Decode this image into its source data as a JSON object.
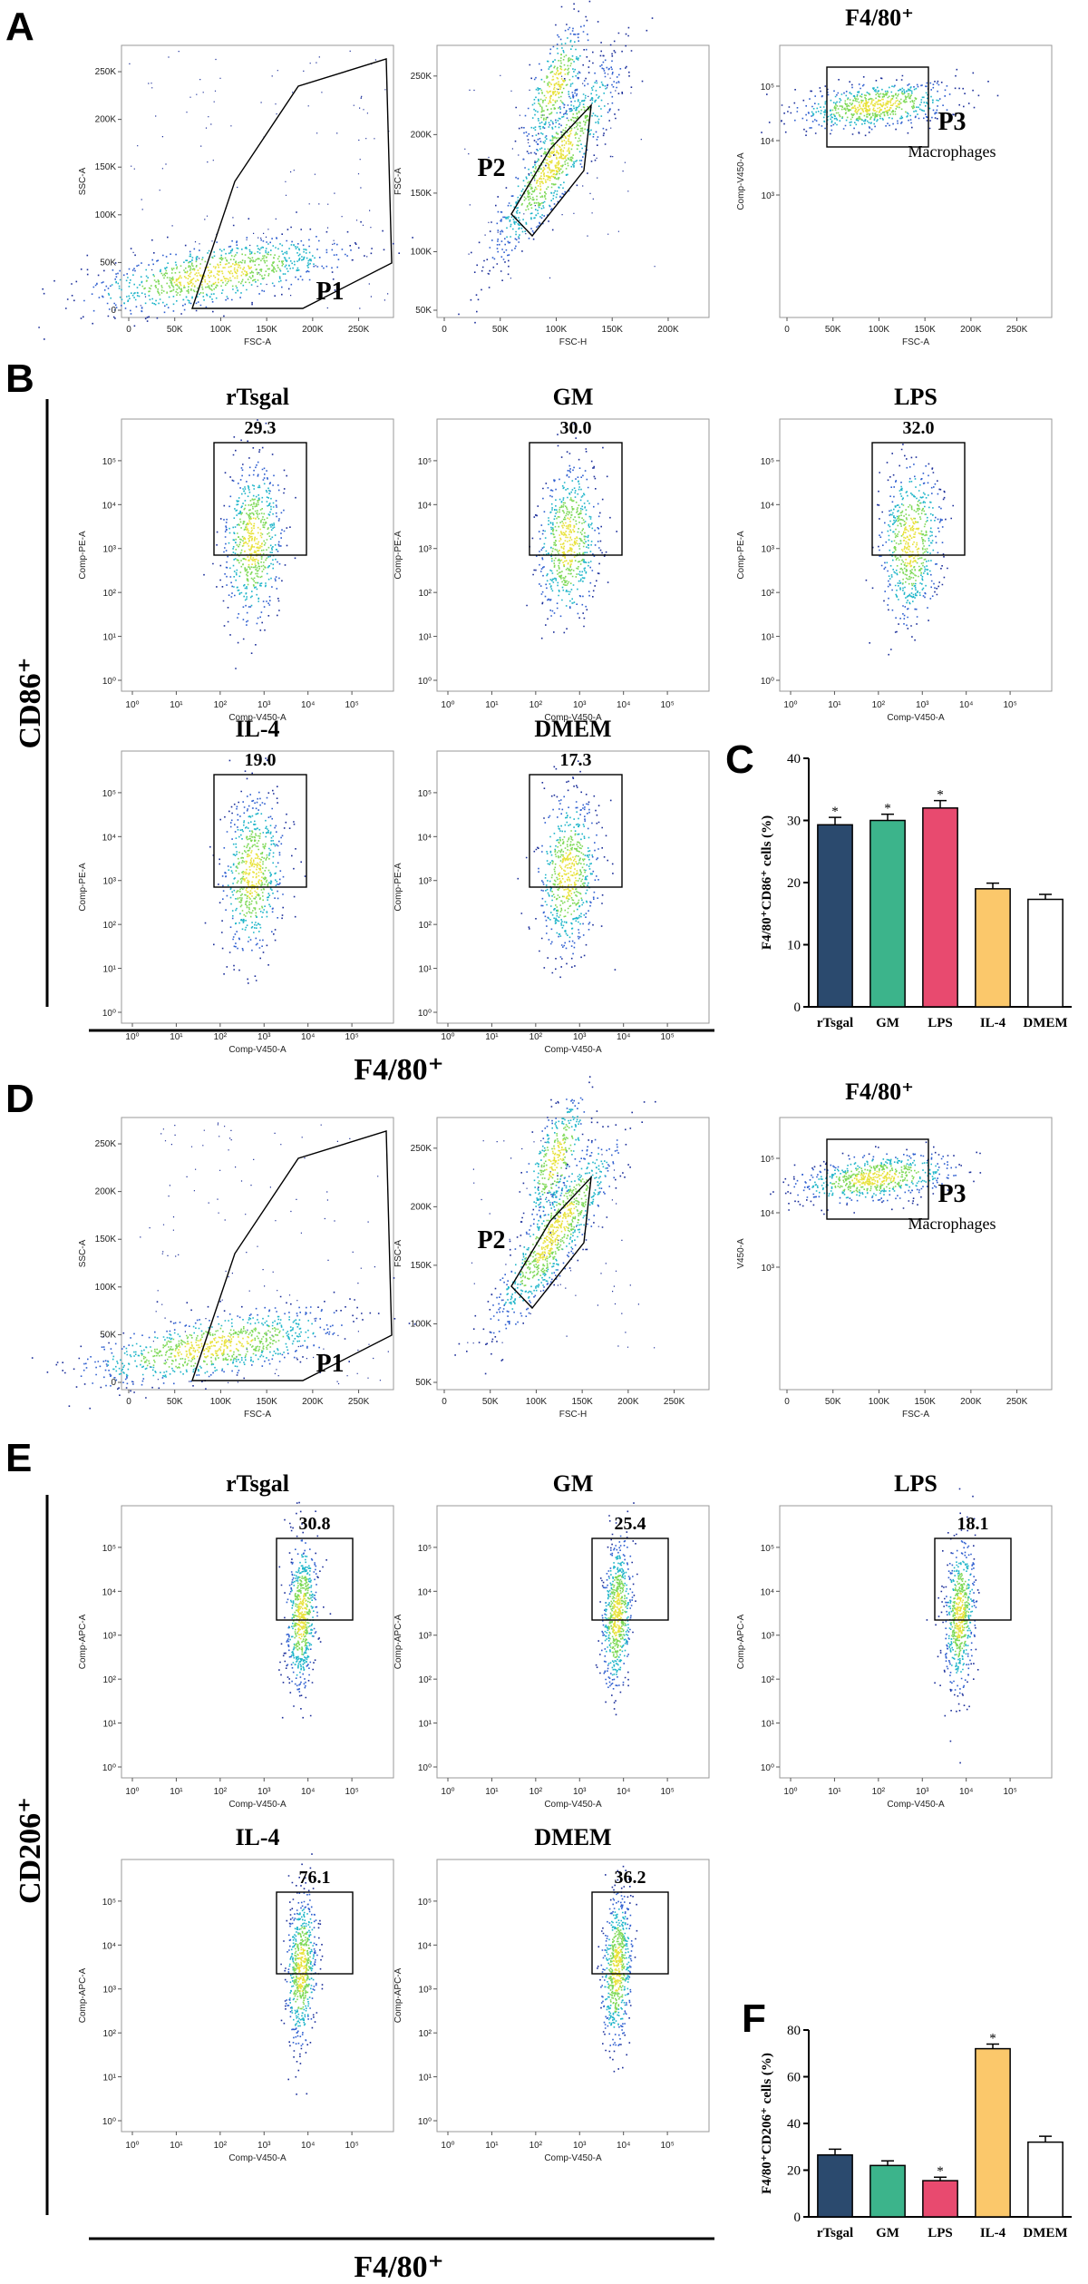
{
  "panels": {
    "A": "A",
    "B": "B",
    "C": "C",
    "D": "D",
    "E": "E",
    "F": "F"
  },
  "labels": {
    "f480_plus": "F4/80⁺",
    "cd86": "CD86⁺",
    "cd206": "CD206⁺",
    "macrophages": "Macrophages"
  },
  "gating_A": {
    "p1": {
      "name": "P1",
      "xlabel": "FSC-A",
      "ylabel": "SSC-A",
      "xticks": [
        "0",
        "50K",
        "100K",
        "150K",
        "200K",
        "250K"
      ],
      "yticks": [
        "0",
        "50K",
        "100K",
        "150K",
        "200K",
        "250K"
      ]
    },
    "p2": {
      "name": "P2",
      "xlabel": "FSC-H",
      "ylabel": "FSC-A",
      "xticks": [
        "0",
        "50K",
        "100K",
        "150K",
        "200K"
      ],
      "yticks": [
        "50K",
        "100K",
        "150K",
        "200K",
        "250K"
      ]
    },
    "p3": {
      "name": "P3",
      "title": "F4/80⁺",
      "xlabel": "FSC-A",
      "ylabel": "Comp-V450-A",
      "xticks": [
        "0",
        "50K",
        "100K",
        "150K",
        "200K",
        "250K"
      ]
    }
  },
  "gating_D": {
    "p1": {
      "name": "P1",
      "xlabel": "FSC-A",
      "ylabel": "SSC-A",
      "xticks": [
        "0",
        "50K",
        "100K",
        "150K",
        "200K",
        "250K"
      ],
      "yticks": [
        "0",
        "50K",
        "100K",
        "150K",
        "200K",
        "250K"
      ]
    },
    "p2": {
      "name": "P2",
      "xlabel": "FSC-H",
      "ylabel": "FSC-A",
      "xticks": [
        "0",
        "50K",
        "100K",
        "150K",
        "200K",
        "250K"
      ],
      "yticks": [
        "50K",
        "100K",
        "150K",
        "200K",
        "250K"
      ]
    },
    "p3": {
      "name": "P3",
      "title": "F4/80⁺",
      "xlabel": "FSC-A",
      "ylabel": "V450-A",
      "xticks": [
        "0",
        "50K",
        "100K",
        "150K",
        "200K",
        "250K"
      ]
    }
  },
  "flow_B": {
    "xlabel": "Comp-V450-A",
    "ylabel": "Comp-PE-A",
    "plots": [
      {
        "name": "rTsgal",
        "value": "29.3"
      },
      {
        "name": "GM",
        "value": "30.0"
      },
      {
        "name": "LPS",
        "value": "32.0"
      },
      {
        "name": "IL-4",
        "value": "19.0"
      },
      {
        "name": "DMEM",
        "value": "17.3"
      }
    ]
  },
  "flow_E": {
    "xlabel": "Comp-V450-A",
    "ylabel": "Comp-APC-A",
    "plots": [
      {
        "name": "rTsgal",
        "value": "30.8"
      },
      {
        "name": "GM",
        "value": "25.4"
      },
      {
        "name": "LPS",
        "value": "18.1"
      },
      {
        "name": "IL-4",
        "value": "76.1"
      },
      {
        "name": "DMEM",
        "value": "36.2"
      }
    ]
  },
  "chart_data": [
    {
      "type": "bar",
      "panel": "C",
      "title": "",
      "ylabel": "F4/80⁺CD86⁺ cells (%)",
      "xlabel": "",
      "categories": [
        "rTsgal",
        "GM",
        "LPS",
        "IL-4",
        "DMEM"
      ],
      "values": [
        29.3,
        30.0,
        32.0,
        19.0,
        17.3
      ],
      "errors": [
        1.2,
        1.0,
        1.2,
        0.9,
        0.8
      ],
      "significant": [
        true,
        true,
        true,
        false,
        false
      ],
      "colors": [
        "#2b4a6e",
        "#3cb48b",
        "#e84a6f",
        "#fbc86b",
        "#ffffff"
      ],
      "ylim": [
        0,
        40
      ],
      "yticks": [
        0,
        10,
        20,
        30,
        40
      ]
    },
    {
      "type": "bar",
      "panel": "F",
      "title": "",
      "ylabel": "F4/80⁺CD206⁺ cells (%)",
      "xlabel": "",
      "categories": [
        "rTsgal",
        "GM",
        "LPS",
        "IL-4",
        "DMEM"
      ],
      "values": [
        26.5,
        22.0,
        15.5,
        72.0,
        32.0
      ],
      "errors": [
        2.5,
        2.0,
        1.5,
        2.0,
        2.5
      ],
      "significant": [
        false,
        false,
        true,
        true,
        false
      ],
      "colors": [
        "#2b4a6e",
        "#3cb48b",
        "#e84a6f",
        "#fbc86b",
        "#ffffff"
      ],
      "ylim": [
        0,
        80
      ],
      "yticks": [
        0,
        20,
        40,
        60,
        80
      ]
    }
  ],
  "log_ticks": [
    "10⁰",
    "10¹",
    "10²",
    "10³",
    "10⁴",
    "10⁵"
  ],
  "sig_mark": "*"
}
